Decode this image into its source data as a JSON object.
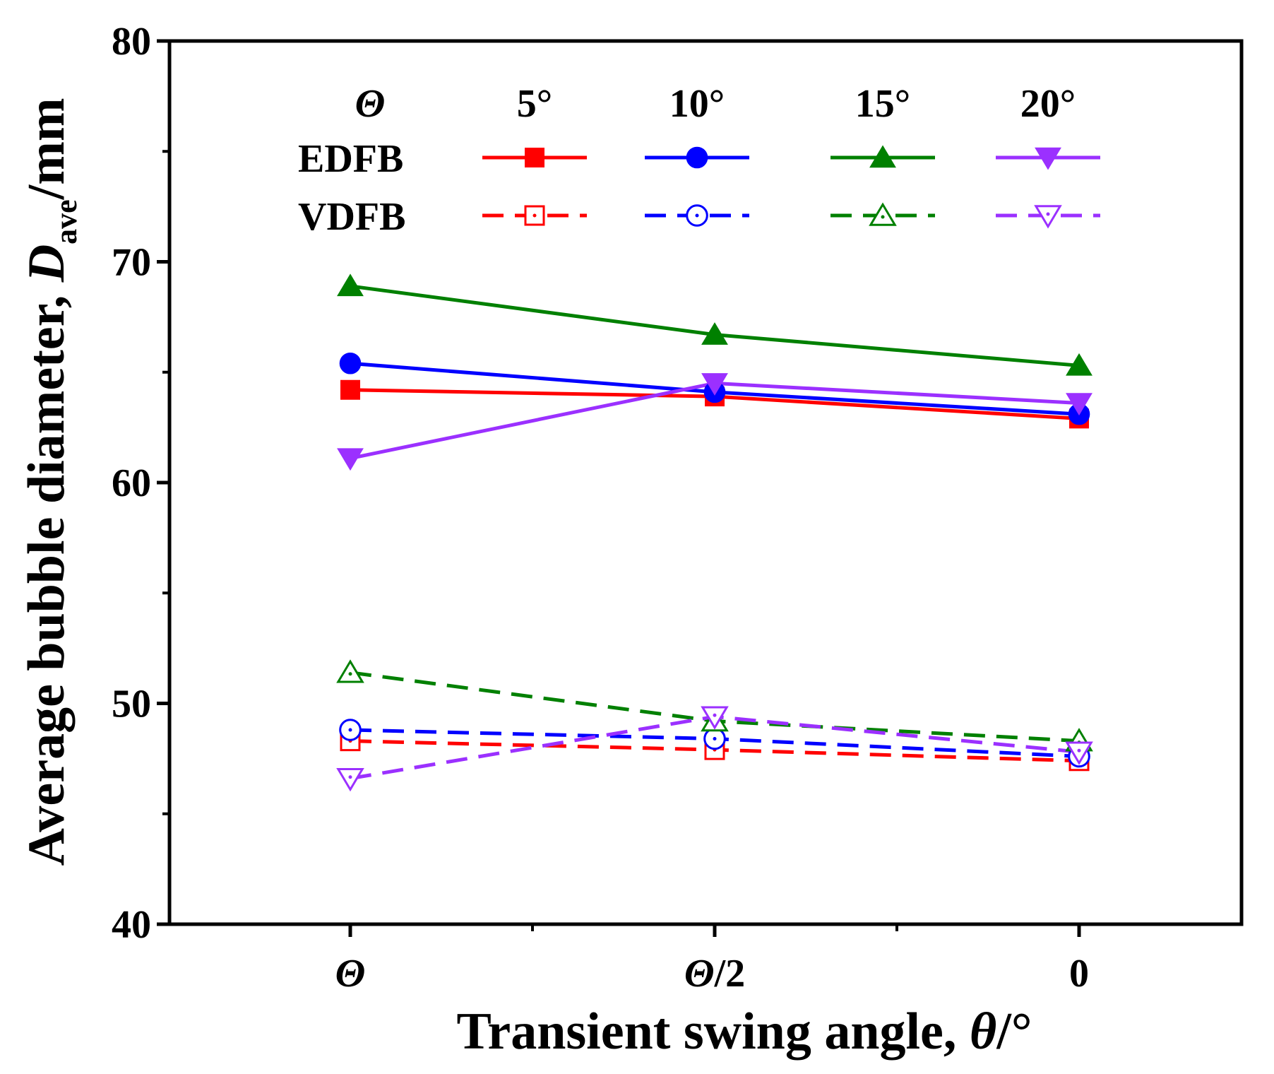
{
  "chart_data": {
    "type": "line",
    "xlabel": {
      "main": "Transient swing angle, ",
      "symbol": "θ",
      "unit": "/°"
    },
    "ylabel": {
      "main": "Average bubble diameter, ",
      "symbol": "D",
      "sub": "ave",
      "unit": "/mm"
    },
    "categories": [
      "Θ",
      "Θ/2",
      "0"
    ],
    "ylim": [
      40,
      80
    ],
    "yticks": [
      40,
      50,
      60,
      70,
      80
    ],
    "legend": {
      "header": "Θ",
      "angles": [
        "5°",
        "10°",
        "15°",
        "20°"
      ],
      "rows": [
        "EDFB",
        "VDFB"
      ],
      "placement": "top"
    },
    "series": [
      {
        "name": "EDFB 5°",
        "group": "EDFB",
        "angle": "5°",
        "color": "#ff0000",
        "marker": "square",
        "filled": true,
        "dashed": false,
        "values": [
          64.2,
          63.9,
          62.9
        ]
      },
      {
        "name": "EDFB 10°",
        "group": "EDFB",
        "angle": "10°",
        "color": "#0000ff",
        "marker": "circle",
        "filled": true,
        "dashed": false,
        "values": [
          65.4,
          64.1,
          63.1
        ]
      },
      {
        "name": "EDFB 15°",
        "group": "EDFB",
        "angle": "15°",
        "color": "#008000",
        "marker": "triangle",
        "filled": true,
        "dashed": false,
        "values": [
          68.9,
          66.7,
          65.3
        ]
      },
      {
        "name": "EDFB 20°",
        "group": "EDFB",
        "angle": "20°",
        "color": "#9b30ff",
        "marker": "triangle-down",
        "filled": true,
        "dashed": false,
        "values": [
          61.1,
          64.5,
          63.6
        ]
      },
      {
        "name": "VDFB 5°",
        "group": "VDFB",
        "angle": "5°",
        "color": "#ff0000",
        "marker": "square",
        "filled": false,
        "dashed": true,
        "values": [
          48.3,
          47.9,
          47.4
        ]
      },
      {
        "name": "VDFB 10°",
        "group": "VDFB",
        "angle": "10°",
        "color": "#0000ff",
        "marker": "circle",
        "filled": false,
        "dashed": true,
        "values": [
          48.8,
          48.4,
          47.6
        ]
      },
      {
        "name": "VDFB 15°",
        "group": "VDFB",
        "angle": "15°",
        "color": "#008000",
        "marker": "triangle",
        "filled": false,
        "dashed": true,
        "values": [
          51.4,
          49.2,
          48.3
        ]
      },
      {
        "name": "VDFB 20°",
        "group": "VDFB",
        "angle": "20°",
        "color": "#9b30ff",
        "marker": "triangle-down",
        "filled": false,
        "dashed": true,
        "values": [
          46.6,
          49.4,
          47.8
        ]
      }
    ]
  }
}
